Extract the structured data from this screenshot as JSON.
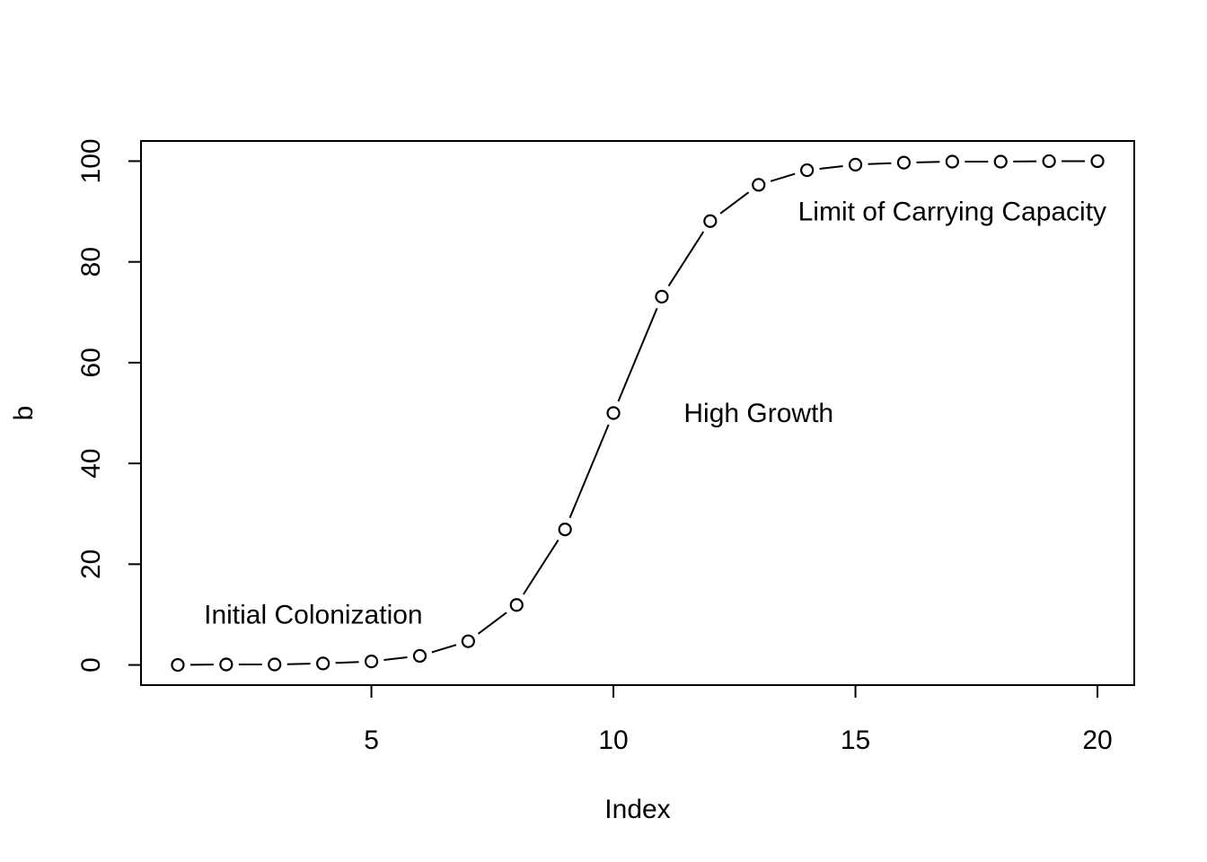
{
  "chart_data": {
    "type": "line",
    "line_style": "both points and lines",
    "x": [
      1,
      2,
      3,
      4,
      5,
      6,
      7,
      8,
      9,
      10,
      11,
      12,
      13,
      14,
      15,
      16,
      17,
      18,
      19,
      20
    ],
    "series": [
      {
        "values": [
          0.0,
          0.1,
          0.1,
          0.3,
          0.7,
          1.8,
          4.7,
          11.9,
          26.9,
          50.0,
          73.1,
          88.1,
          95.3,
          98.2,
          99.3,
          99.7,
          99.9,
          99.9,
          100.0,
          100.0
        ]
      }
    ],
    "xlabel": "Index",
    "ylabel": "b",
    "xlim": [
      0.24,
      20.76
    ],
    "ylim": [
      -4,
      104
    ],
    "xticks": [
      5,
      10,
      15,
      20
    ],
    "yticks": [
      0,
      20,
      40,
      60,
      80,
      100
    ],
    "grid": false,
    "annotations": [
      {
        "text": "Initial Colonization",
        "x": 3.8,
        "y": 10
      },
      {
        "text": "High Growth",
        "x": 13,
        "y": 50
      },
      {
        "text": "Limit of Carrying Capacity",
        "x": 17,
        "y": 90
      }
    ]
  }
}
